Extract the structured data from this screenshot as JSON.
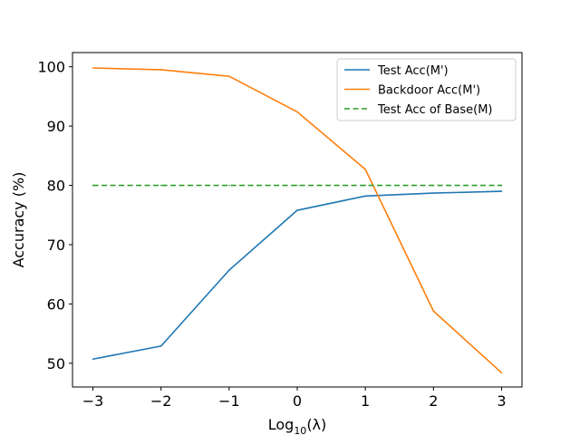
{
  "chart_data": {
    "type": "line",
    "title": "",
    "xlabel_base": "Log",
    "xlabel_sub": "10",
    "xlabel_arg": "(λ)",
    "ylabel": "Accuracy (%)",
    "x": [
      -3,
      -2,
      -1,
      0,
      1,
      2,
      3
    ],
    "x_tick_values": [
      -3,
      -2,
      -1,
      0,
      1,
      2,
      3
    ],
    "x_tick_labels": [
      "−3",
      "−2",
      "−1",
      "0",
      "1",
      "2",
      "3"
    ],
    "y_tick_values": [
      50,
      60,
      70,
      80,
      90,
      100
    ],
    "y_tick_labels": [
      "50",
      "60",
      "70",
      "80",
      "90",
      "100"
    ],
    "xlim": [
      -3.3,
      3.3
    ],
    "ylim": [
      46,
      102.4
    ],
    "grid": false,
    "legend_position": "top-right",
    "series": [
      {
        "name": "Test Acc(M')",
        "color": "#1f77b4",
        "style": "solid",
        "values": [
          50.7,
          52.9,
          65.7,
          75.8,
          78.2,
          78.7,
          79.0
        ]
      },
      {
        "name": "Backdoor Acc(M')",
        "color": "#ff7f0e",
        "style": "solid",
        "values": [
          99.8,
          99.5,
          98.4,
          92.4,
          82.7,
          58.8,
          48.4
        ]
      },
      {
        "name": "Test Acc of Base(M)",
        "color": "#2ca02c",
        "style": "dashed",
        "values": [
          80,
          80,
          80,
          80,
          80,
          80,
          80
        ]
      }
    ]
  }
}
